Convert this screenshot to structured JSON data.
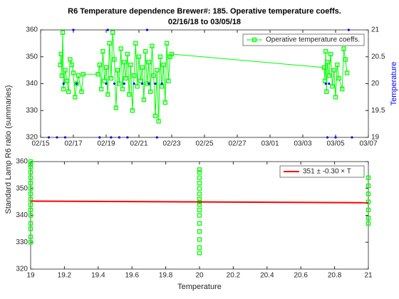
{
  "ylabel": "Standard Lamp R6 ratio (summaries)",
  "chart_data": [
    {
      "type": "line",
      "title": "R6 Temperature dependence Brewer#: 185. Operative temperature coeffs.",
      "subtitle": "02/16/18 to 03/05/18",
      "y2label": "Temperature",
      "xlim": [
        46,
        66
      ],
      "xticks": [
        {
          "value": 46,
          "label": "02/15"
        },
        {
          "value": 48,
          "label": "02/17"
        },
        {
          "value": 50,
          "label": "02/19"
        },
        {
          "value": 52,
          "label": "02/21"
        },
        {
          "value": 54,
          "label": "02/23"
        },
        {
          "value": 56,
          "label": "02/25"
        },
        {
          "value": 58,
          "label": "02/27"
        },
        {
          "value": 60,
          "label": "03/01"
        },
        {
          "value": 62,
          "label": "03/03"
        },
        {
          "value": 64,
          "label": "03/05"
        },
        {
          "value": 66,
          "label": "03/07"
        }
      ],
      "ylim": [
        320,
        360
      ],
      "yticks": [
        320,
        330,
        340,
        350,
        360
      ],
      "y2lim": [
        19,
        21
      ],
      "y2ticks": [
        19,
        19.5,
        20,
        20.5,
        21
      ],
      "y2color": "#0000ff",
      "legend": "top-right",
      "grid": false,
      "series": [
        {
          "name": "Operative temperature coeffs.",
          "color": "#00ff00",
          "line": true,
          "marker": "square",
          "x": [
            47.2,
            47.25,
            47.3,
            47.35,
            47.4,
            47.5,
            47.6,
            47.7,
            47.8,
            47.9,
            48.0,
            48.1,
            48.2,
            48.3,
            48.5,
            48.6,
            49.5,
            49.6,
            49.7,
            49.8,
            49.9,
            50.0,
            50.1,
            50.2,
            50.3,
            50.4,
            50.5,
            50.6,
            50.7,
            50.8,
            50.9,
            51.0,
            51.1,
            51.2,
            51.3,
            51.4,
            51.5,
            51.6,
            51.7,
            51.8,
            51.9,
            52.0,
            52.1,
            52.2,
            52.3,
            52.4,
            52.5,
            52.6,
            52.7,
            52.8,
            52.9,
            53.0,
            53.1,
            53.2,
            53.3,
            53.4,
            53.5,
            53.6,
            53.7,
            53.8,
            53.9,
            54.0,
            63.3,
            63.35,
            63.4,
            63.45,
            63.5,
            63.6,
            63.7,
            63.8,
            63.9,
            64.0,
            64.1,
            64.2,
            64.4,
            64.5,
            64.6,
            64.7
          ],
          "values": [
            347,
            351,
            343,
            359,
            338,
            345,
            341,
            337,
            349,
            347,
            344,
            335,
            340,
            343,
            337,
            343.5,
            343.5,
            347,
            338,
            352,
            341,
            346,
            336,
            355,
            342,
            359,
            349,
            331,
            345,
            340,
            353,
            338,
            348,
            342,
            351,
            336,
            347,
            330,
            343,
            355,
            339,
            350,
            341,
            346,
            334,
            352,
            340,
            348,
            337,
            354,
            343,
            328,
            345,
            326,
            350,
            339,
            347,
            333,
            355,
            341,
            350,
            351,
            346,
            341,
            352,
            337,
            348,
            343,
            351,
            339,
            345,
            335,
            347,
            342,
            338,
            353,
            349,
            344
          ]
        },
        {
          "color": "#0000ff",
          "line": false,
          "marker": "dot",
          "axis": "y2",
          "x": [
            47.4,
            48.2,
            50.0,
            50.5,
            51.1,
            51.7,
            52.2,
            52.6,
            53.0,
            53.4,
            63.4,
            63.6,
            46.5,
            47.0,
            47.5,
            49.6,
            50.3,
            50.8,
            51.3,
            53.1,
            63.5,
            64.0,
            65.0,
            48.0,
            50.1,
            52.5,
            64.8
          ],
          "values": [
            20,
            20,
            20,
            20,
            20,
            20,
            20,
            20,
            20,
            20,
            20,
            20,
            19,
            19,
            19,
            19,
            19,
            19,
            19,
            19,
            19,
            19,
            19,
            21,
            21,
            21,
            21
          ]
        }
      ]
    },
    {
      "type": "scatter",
      "xlabel": "Temperature",
      "xlim": [
        19,
        21
      ],
      "xticks": [
        19,
        19.2,
        19.4,
        19.6,
        19.8,
        20,
        20.2,
        20.4,
        20.6,
        20.8,
        21
      ],
      "ylim": [
        320,
        360
      ],
      "yticks": [
        320,
        330,
        340,
        350,
        360
      ],
      "legend": "top-right",
      "grid": false,
      "series": [
        {
          "color": "#00ff00",
          "line": false,
          "marker": "square",
          "x": [
            19,
            19,
            19,
            19,
            19,
            19,
            19,
            19,
            19,
            19,
            19,
            19,
            19,
            19,
            19,
            19,
            20,
            20,
            20,
            20,
            20,
            20,
            20,
            20,
            20,
            20,
            20,
            20,
            20,
            20,
            20,
            20,
            21,
            21,
            21,
            21,
            21,
            21,
            21
          ],
          "values": [
            330,
            332,
            335,
            337,
            340,
            342,
            344,
            346,
            348,
            350,
            352,
            354,
            356,
            358,
            359,
            360,
            326,
            328,
            331,
            334,
            337,
            340,
            342,
            344,
            346,
            348,
            350,
            352,
            354,
            356,
            357,
            345,
            337,
            339,
            342,
            345,
            348,
            351,
            354
          ]
        },
        {
          "name": "351 ± -0.30 × T",
          "color": "#ff0000",
          "line": true,
          "marker": "none",
          "x": [
            19,
            21
          ],
          "values": [
            345.3,
            344.7
          ]
        }
      ]
    }
  ]
}
